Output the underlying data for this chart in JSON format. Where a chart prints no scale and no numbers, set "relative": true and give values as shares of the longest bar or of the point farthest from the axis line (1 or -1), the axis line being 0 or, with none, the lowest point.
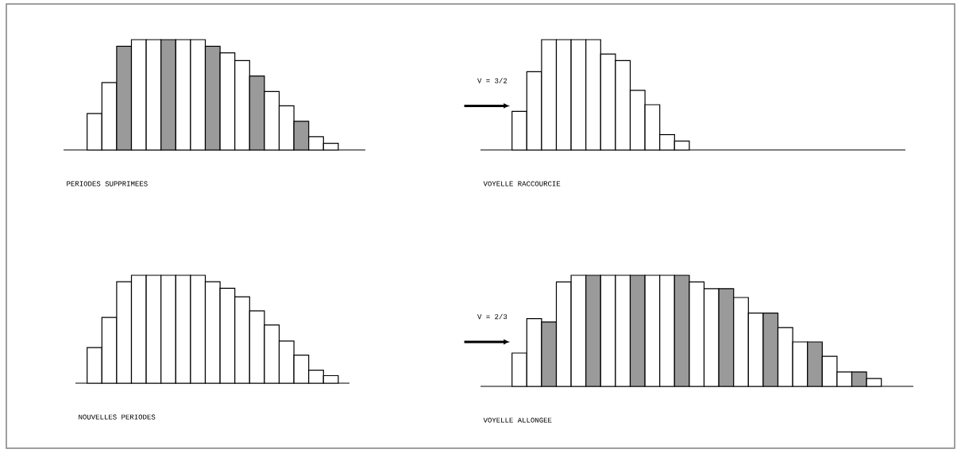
{
  "chart_data": [
    {
      "type": "bar",
      "relative": true,
      "title": "PERIODES SUPPRIMEES",
      "categories": [
        null,
        null,
        null,
        null,
        null,
        null,
        null,
        null,
        null,
        null,
        null,
        null,
        null,
        null,
        null,
        null,
        null
      ],
      "values": [
        0.33,
        0.61,
        0.94,
        1,
        1,
        1,
        1,
        1,
        0.94,
        0.88,
        0.81,
        0.67,
        0.53,
        0.4,
        0.26,
        0.12,
        0.06
      ],
      "colors": [
        "#ffffff",
        "#ffffff",
        "#9a9a9a",
        "#ffffff",
        "#ffffff",
        "#9a9a9a",
        "#ffffff",
        "#ffffff",
        "#9a9a9a",
        "#ffffff",
        "#ffffff",
        "#9a9a9a",
        "#ffffff",
        "#ffffff",
        "#9a9a9a",
        "#ffffff",
        "#ffffff"
      ]
    },
    {
      "type": "bar",
      "relative": true,
      "title": "VOYELLE RACCOURCIE",
      "annotations": [
        "V = 3/2"
      ],
      "categories": [
        null,
        null,
        null,
        null,
        null,
        null,
        null,
        null,
        null,
        null,
        null,
        null
      ],
      "values": [
        0.35,
        0.71,
        1,
        1,
        1,
        1,
        0.87,
        0.81,
        0.54,
        0.41,
        0.14,
        0.08
      ],
      "colors": [
        "#ffffff",
        "#ffffff",
        "#ffffff",
        "#ffffff",
        "#ffffff",
        "#ffffff",
        "#ffffff",
        "#ffffff",
        "#ffffff",
        "#ffffff",
        "#ffffff",
        "#ffffff"
      ]
    },
    {
      "type": "bar",
      "relative": true,
      "title": "NOUVELLES PERIODES",
      "categories": [
        null,
        null,
        null,
        null,
        null,
        null,
        null,
        null,
        null,
        null,
        null,
        null,
        null,
        null,
        null,
        null,
        null
      ],
      "values": [
        0.33,
        0.61,
        0.94,
        1,
        1,
        1,
        1,
        1,
        0.94,
        0.88,
        0.8,
        0.67,
        0.54,
        0.39,
        0.26,
        0.12,
        0.07
      ],
      "colors": [
        "#ffffff",
        "#ffffff",
        "#ffffff",
        "#ffffff",
        "#ffffff",
        "#ffffff",
        "#ffffff",
        "#ffffff",
        "#ffffff",
        "#ffffff",
        "#ffffff",
        "#ffffff",
        "#ffffff",
        "#ffffff",
        "#ffffff",
        "#ffffff",
        "#ffffff"
      ]
    },
    {
      "type": "bar",
      "relative": true,
      "title": "VOYELLE ALLONGEE",
      "annotations": [
        "V = 2/3"
      ],
      "categories": [
        null,
        null,
        null,
        null,
        null,
        null,
        null,
        null,
        null,
        null,
        null,
        null,
        null,
        null,
        null,
        null,
        null,
        null,
        null,
        null,
        null,
        null,
        null,
        null,
        null
      ],
      "values": [
        0.3,
        0.61,
        0.58,
        0.94,
        1,
        1,
        1,
        1,
        1,
        1,
        1,
        1,
        0.94,
        0.88,
        0.88,
        0.8,
        0.66,
        0.66,
        0.53,
        0.4,
        0.4,
        0.27,
        0.13,
        0.13,
        0.07
      ],
      "colors": [
        "#ffffff",
        "#ffffff",
        "#9a9a9a",
        "#ffffff",
        "#ffffff",
        "#9a9a9a",
        "#ffffff",
        "#ffffff",
        "#9a9a9a",
        "#ffffff",
        "#ffffff",
        "#9a9a9a",
        "#ffffff",
        "#ffffff",
        "#9a9a9a",
        "#ffffff",
        "#ffffff",
        "#9a9a9a",
        "#ffffff",
        "#ffffff",
        "#9a9a9a",
        "#ffffff",
        "#ffffff",
        "#9a9a9a",
        "#ffffff"
      ]
    }
  ]
}
